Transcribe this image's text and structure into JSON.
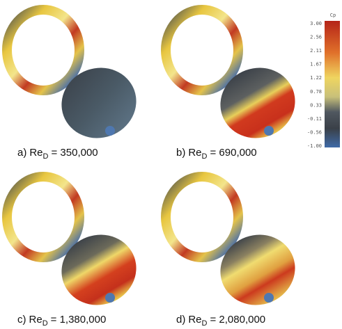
{
  "panels": [
    {
      "label": "a)",
      "re": "Re",
      "sub": "D",
      "value": "= 350,000"
    },
    {
      "label": "b)",
      "re": "Re",
      "sub": "D",
      "value": "= 690,000"
    },
    {
      "label": "c)",
      "re": "Re",
      "sub": "D",
      "value": "= 1,380,000"
    },
    {
      "label": "d)",
      "re": "Re",
      "sub": "D",
      "value": "= 2,080,000"
    }
  ],
  "colorbar": {
    "title": "Cp",
    "labels": [
      "3.00",
      "2.56",
      "2.11",
      "1.67",
      "1.22",
      "0.78",
      "0.33",
      "-0.11",
      "-0.56",
      "-1.00"
    ]
  }
}
